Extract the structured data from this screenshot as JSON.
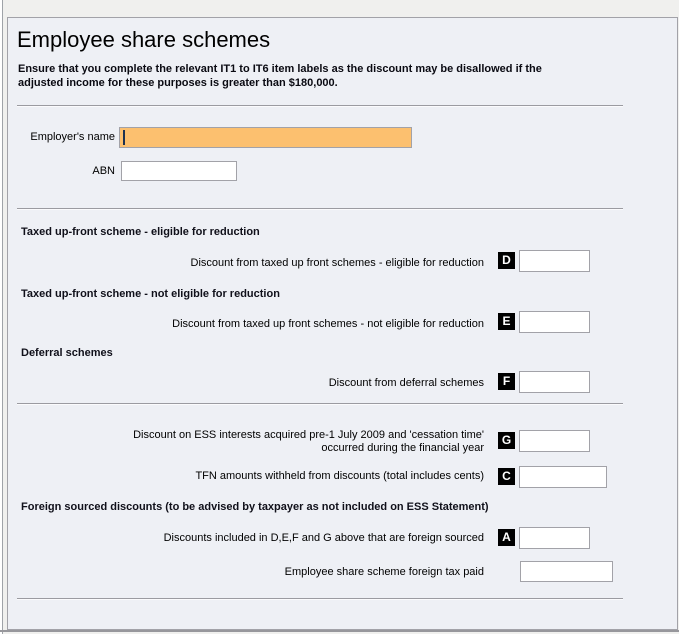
{
  "header": {
    "title": "Employee share schemes",
    "warning": "Ensure that you complete the relevant IT1 to IT6 item labels as the discount may be disallowed if the\nadjusted income for these purposes is greater than $180,000."
  },
  "employer": {
    "name": {
      "label": "Employer's name",
      "value": "",
      "placeholder": ""
    },
    "abn": {
      "label": "ABN",
      "value": "",
      "placeholder": ""
    }
  },
  "section_headers": {
    "taxed_eligible": "Taxed up-front scheme - eligible for reduction",
    "taxed_not_eligible": "Taxed up-front scheme - not eligible for reduction",
    "deferral": "Deferral schemes",
    "foreign": "Foreign sourced discounts (to be advised by taxpayer as not included on ESS Statement)"
  },
  "rows": {
    "d": {
      "label": "Discount from taxed up front schemes - eligible for reduction",
      "letter": "D",
      "value": ""
    },
    "e": {
      "label": "Discount from taxed up front schemes - not eligible for reduction",
      "letter": "E",
      "value": ""
    },
    "f": {
      "label": "Discount from deferral schemes",
      "letter": "F",
      "value": ""
    },
    "g": {
      "label": "Discount on ESS interests acquired pre-1 July 2009 and 'cessation time'\noccurred during the financial year",
      "letter": "G",
      "value": ""
    },
    "c": {
      "label": "TFN amounts withheld from discounts (total includes cents)",
      "letter": "C",
      "value": ""
    },
    "a": {
      "label": "Discounts included in D,E,F and G above that are foreign sourced",
      "letter": "A",
      "value": ""
    },
    "foreign_tax": {
      "label": "Employee share scheme foreign tax paid",
      "value": ""
    }
  },
  "colors": {
    "focused_field_bg": "#FCC06F",
    "panel_bg": "#EEF0F5",
    "outer_bg": "#F0F0EE",
    "field_border": "#A2A2A8",
    "letter_box_bg": "#000000",
    "letter_box_fg": "#FFFFFF",
    "caret": "#1D3250"
  }
}
